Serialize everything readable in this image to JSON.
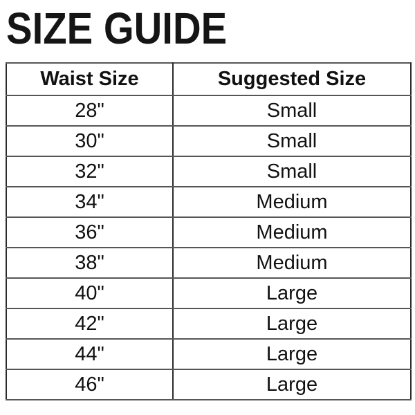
{
  "title": "SIZE GUIDE",
  "table": {
    "headers": [
      "Waist Size",
      "Suggested Size"
    ],
    "rows": [
      [
        "28\"",
        "Small"
      ],
      [
        "30\"",
        "Small"
      ],
      [
        "32\"",
        "Small"
      ],
      [
        "34\"",
        "Medium"
      ],
      [
        "36\"",
        "Medium"
      ],
      [
        "38\"",
        "Medium"
      ],
      [
        "40\"",
        "Large"
      ],
      [
        "42\"",
        "Large"
      ],
      [
        "44\"",
        "Large"
      ],
      [
        "46\"",
        "Large"
      ]
    ]
  },
  "colors": {
    "background": "#ffffff",
    "title_text": "#151515",
    "cell_text": "#111111",
    "border_horizontal": "#565656",
    "border_vertical": "#2b2b2b"
  }
}
